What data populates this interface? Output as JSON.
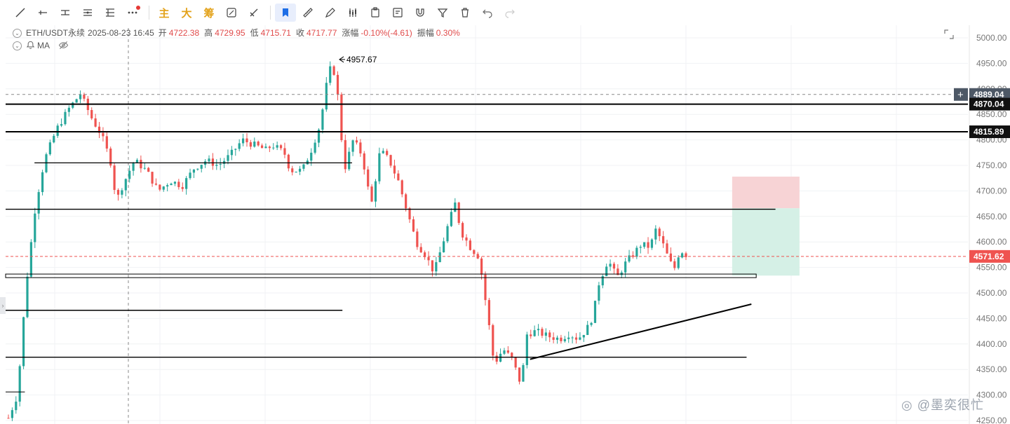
{
  "toolbar": {
    "items": [
      {
        "name": "trend-line-icon"
      },
      {
        "name": "horizontal-ray-icon"
      },
      {
        "name": "horizontal-line-icon"
      },
      {
        "name": "parallel-channel-icon"
      },
      {
        "name": "fib-retracement-icon"
      },
      {
        "name": "more-icon"
      }
    ],
    "cjk_buttons": [
      "主",
      "大",
      "筹"
    ],
    "tools_right": [
      {
        "name": "drawing-visibility-icon"
      },
      {
        "name": "fib-tool-icon"
      },
      {
        "name": "bookmark-icon"
      },
      {
        "name": "ruler-icon"
      },
      {
        "name": "pen-icon"
      },
      {
        "name": "candles-icon"
      },
      {
        "name": "clipboard-icon"
      },
      {
        "name": "note-icon"
      },
      {
        "name": "magnet-icon"
      },
      {
        "name": "filter-icon"
      },
      {
        "name": "trash-icon"
      },
      {
        "name": "undo-icon"
      },
      {
        "name": "redo-icon"
      }
    ]
  },
  "legend": {
    "symbol": "ETH/USDT永续",
    "datetime": "2025-08-23 16:45",
    "open_label": "开",
    "open": "4722.38",
    "high_label": "高",
    "high": "4729.95",
    "low_label": "低",
    "low": "4715.71",
    "close_label": "收",
    "close": "4717.77",
    "change_label": "涨幅",
    "change": "-0.10%(-4.61)",
    "amplitude_label": "振幅",
    "amplitude": "0.30%",
    "indicator": "MA"
  },
  "colors": {
    "up": "#26a69a",
    "down": "#ef5350",
    "current_price": "#ef5350",
    "label_dark": "#111111",
    "crosshair_label": "#4d5866",
    "risk_zone": "#f7d3d5",
    "reward_zone": "#d5f0e6",
    "grid": "#f0f2f4"
  },
  "chart_data": {
    "type": "candlestick",
    "symbol": "ETH/USDT永续",
    "y_ticks": [
      5000,
      4950,
      4900,
      4850,
      4800,
      4750,
      4700,
      4650,
      4600,
      4550,
      4500,
      4450,
      4400,
      4350,
      4300,
      4250
    ],
    "ylim": [
      4248,
      5010
    ],
    "peak_annotation": {
      "text": "4957.67",
      "value": 4957.67
    },
    "price_labels": [
      {
        "value": 4889.04,
        "text": "4889.04",
        "style": "crosshair"
      },
      {
        "value": 4870.04,
        "text": "4870.04",
        "style": "dark"
      },
      {
        "value": 4815.89,
        "text": "4815.89",
        "style": "dark"
      },
      {
        "value": 4571.62,
        "text": "4571.62",
        "style": "current"
      }
    ],
    "horizontal_lines": [
      {
        "value": 4870.04,
        "x_from": 0.0,
        "x_to": 1.0,
        "width": 2
      },
      {
        "value": 4815.89,
        "x_from": 0.0,
        "x_to": 1.0,
        "width": 2
      },
      {
        "value": 4755,
        "x_from": 0.03,
        "x_to": 0.36,
        "width": 1.2
      },
      {
        "value": 4664,
        "x_from": 0.0,
        "x_to": 0.8,
        "width": 1.4
      },
      {
        "value": 4466,
        "x_from": 0.0,
        "x_to": 0.35,
        "width": 1.4
      },
      {
        "value": 4374,
        "x_from": 0.0,
        "x_to": 0.77,
        "width": 1.4
      },
      {
        "value": 4306,
        "x_from": 0.0,
        "x_to": 0.02,
        "width": 1
      }
    ],
    "zone_box": {
      "top": 4537,
      "bottom": 4530,
      "x_from": 0.0,
      "x_to": 0.78
    },
    "trendline": {
      "from_t": 0.545,
      "from_v": 4370,
      "to_t": 0.775,
      "to_v": 4478
    },
    "position_tool": {
      "t_from": 0.755,
      "t_to": 0.825,
      "stop": 4728,
      "entry": 4666,
      "target": 4534
    },
    "crosshair_t": 0.13,
    "candle_count": 180,
    "anchors": [
      [
        0,
        4255
      ],
      [
        3,
        4300
      ],
      [
        6,
        4520
      ],
      [
        9,
        4670
      ],
      [
        12,
        4760
      ],
      [
        16,
        4820
      ],
      [
        20,
        4860
      ],
      [
        24,
        4890
      ],
      [
        28,
        4840
      ],
      [
        31,
        4810
      ],
      [
        34,
        4760
      ],
      [
        36,
        4680
      ],
      [
        38,
        4710
      ],
      [
        42,
        4760
      ],
      [
        46,
        4740
      ],
      [
        50,
        4700
      ],
      [
        54,
        4720
      ],
      [
        58,
        4710
      ],
      [
        62,
        4745
      ],
      [
        66,
        4760
      ],
      [
        70,
        4750
      ],
      [
        74,
        4770
      ],
      [
        78,
        4800
      ],
      [
        82,
        4790
      ],
      [
        86,
        4780
      ],
      [
        88,
        4790
      ],
      [
        92,
        4775
      ],
      [
        94,
        4740
      ],
      [
        98,
        4740
      ],
      [
        101,
        4780
      ],
      [
        104,
        4830
      ],
      [
        106,
        4905
      ],
      [
        108,
        4955
      ],
      [
        110,
        4880
      ],
      [
        112,
        4740
      ],
      [
        115,
        4800
      ],
      [
        118,
        4770
      ],
      [
        121,
        4670
      ],
      [
        124,
        4780
      ],
      [
        127,
        4760
      ],
      [
        130,
        4720
      ],
      [
        133,
        4660
      ],
      [
        136,
        4600
      ],
      [
        139,
        4575
      ],
      [
        142,
        4540
      ],
      [
        144,
        4580
      ],
      [
        147,
        4640
      ],
      [
        149,
        4675
      ],
      [
        151,
        4620
      ],
      [
        154,
        4590
      ],
      [
        157,
        4570
      ],
      [
        160,
        4450
      ],
      [
        162,
        4360
      ],
      [
        165,
        4390
      ],
      [
        168,
        4370
      ],
      [
        171,
        4320
      ],
      [
        173,
        4420
      ],
      [
        176,
        4425
      ],
      [
        180,
        4415
      ],
      [
        184,
        4410
      ],
      [
        187,
        4420
      ],
      [
        190,
        4410
      ],
      [
        193,
        4430
      ],
      [
        195,
        4455
      ],
      [
        197,
        4520
      ],
      [
        200,
        4565
      ],
      [
        203,
        4530
      ],
      [
        206,
        4560
      ],
      [
        209,
        4580
      ],
      [
        211,
        4595
      ],
      [
        214,
        4590
      ],
      [
        216,
        4625
      ],
      [
        218,
        4600
      ],
      [
        220,
        4570
      ],
      [
        222,
        4545
      ],
      [
        224,
        4585
      ],
      [
        226,
        4575
      ]
    ]
  }
}
